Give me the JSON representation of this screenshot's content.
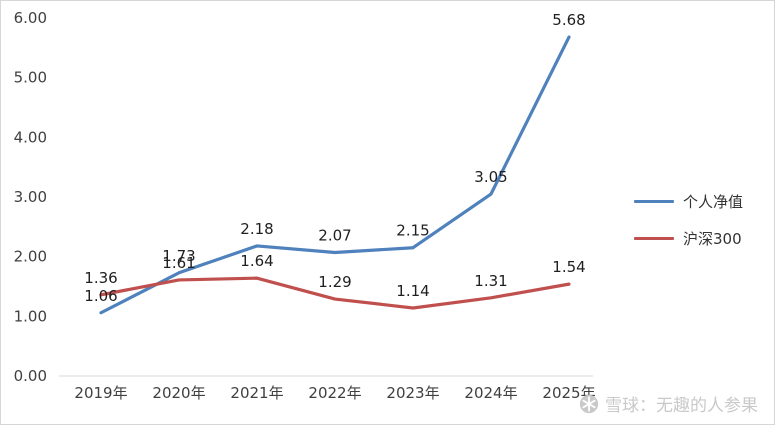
{
  "chart_data": {
    "type": "line",
    "categories": [
      "2019年",
      "2020年",
      "2021年",
      "2022年",
      "2023年",
      "2024年",
      "2025年"
    ],
    "series": [
      {
        "name": "个人净值",
        "color": "#4F81BD",
        "values": [
          1.06,
          1.73,
          2.18,
          2.07,
          2.15,
          3.05,
          5.68
        ]
      },
      {
        "name": "沪深300",
        "color": "#C0504D",
        "values": [
          1.36,
          1.61,
          1.64,
          1.29,
          1.14,
          1.31,
          1.54
        ]
      }
    ],
    "title": "",
    "xlabel": "",
    "ylabel": "",
    "ylim": [
      0,
      6
    ],
    "ytick_step": 1,
    "ytick_labels": [
      "0.00",
      "1.00",
      "2.00",
      "3.00",
      "4.00",
      "5.00",
      "6.00"
    ],
    "grid": false,
    "legend_position": "right",
    "data_labels": true
  },
  "colors": {
    "axis_text": "#404040",
    "data_label_text": "#1f1f1f",
    "axis_line": "#d9d9d9",
    "watermark": "#c9c9c9"
  },
  "watermark": {
    "icon": "snowball-logo",
    "text": "雪球：无趣的人参果"
  }
}
